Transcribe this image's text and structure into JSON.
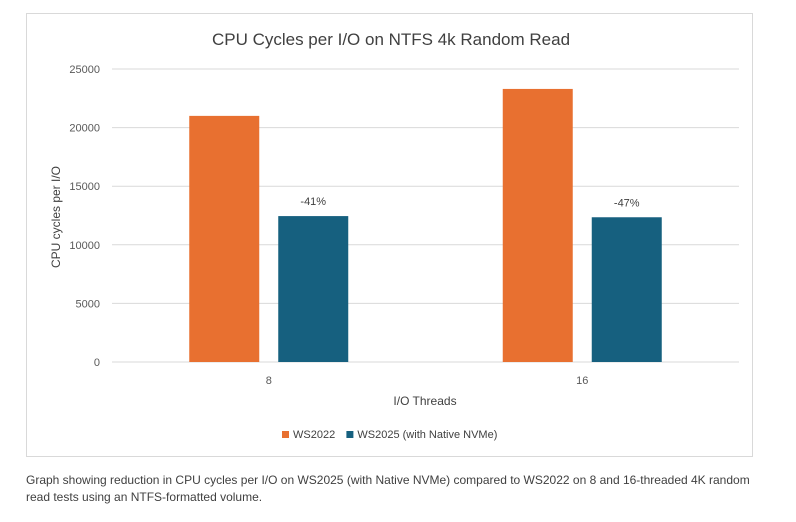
{
  "chart_data": {
    "type": "bar",
    "title": "CPU Cycles per I/O on NTFS 4k Random Read",
    "xlabel": "I/O Threads",
    "ylabel": "CPU cycles per I/O",
    "categories": [
      "8",
      "16"
    ],
    "series": [
      {
        "name": "WS2022",
        "color": "#E87030",
        "values": [
          21000,
          23300
        ]
      },
      {
        "name": "WS2025 (with Native NVMe)",
        "color": "#16607F",
        "values": [
          12450,
          12350
        ]
      }
    ],
    "annotations": [
      "-41%",
      "-47%"
    ],
    "ylim": [
      0,
      25000
    ],
    "yticks": [
      0,
      5000,
      10000,
      15000,
      20000,
      25000
    ],
    "grid": true,
    "legend": "bottom"
  },
  "caption": "Graph showing reduction in CPU cycles per I/O on WS2025 (with Native NVMe) compared to WS2022 on 8 and 16-threaded 4K random read tests using an NTFS-formatted volume."
}
